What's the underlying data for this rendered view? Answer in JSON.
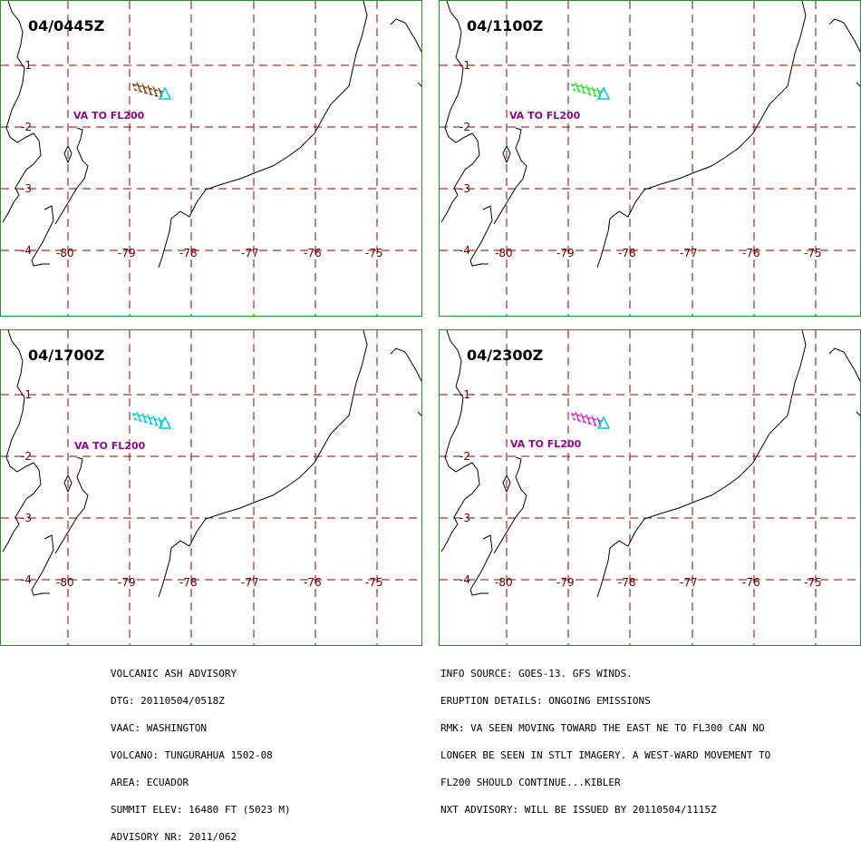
{
  "panels": [
    {
      "title": "04/0445Z",
      "ash_color": "#8b4513",
      "va_label": "VA TO FL200"
    },
    {
      "title": "04/1100Z",
      "ash_color": "#33dd33",
      "va_label": "VA TO FL200"
    },
    {
      "title": "04/1700Z",
      "ash_color": "#00cccc",
      "va_label": "VA TO FL200"
    },
    {
      "title": "04/2300Z",
      "ash_color": "#cc33cc",
      "va_label": "VA TO FL200"
    }
  ],
  "lat_labels": [
    "-1",
    "-2",
    "-3",
    "-4"
  ],
  "lon_labels": [
    "-80",
    "-79",
    "-78",
    "-77",
    "-76",
    "-75"
  ],
  "colors": {
    "grid": "#8b0000",
    "frame": "#2a8a2a",
    "volcano_marker": "#00cccc",
    "va_text": "#8a0a8a"
  },
  "advisory_left": [
    "VOLCANIC ASH ADVISORY",
    "DTG: 20110504/0518Z",
    "VAAC: WASHINGTON",
    "VOLCANO: TUNGURAHUA 1502-08",
    "AREA: ECUADOR",
    "SUMMIT ELEV: 16480 FT (5023 M)",
    "ADVISORY NR: 2011/062"
  ],
  "advisory_right": [
    "INFO SOURCE: GOES-13. GFS WINDS.",
    "ERUPTION DETAILS: ONGOING EMISSIONS",
    "RMK: VA SEEN MOVING TOWARD THE EAST NE TO FL300 CAN NO",
    "LONGER BE SEEN IN STLT IMAGERY. A WEST-WARD MOVEMENT TO",
    "FL200 SHOULD CONTINUE...KIBLER",
    "NXT ADVISORY: WILL BE ISSUED BY 20110504/1115Z"
  ]
}
